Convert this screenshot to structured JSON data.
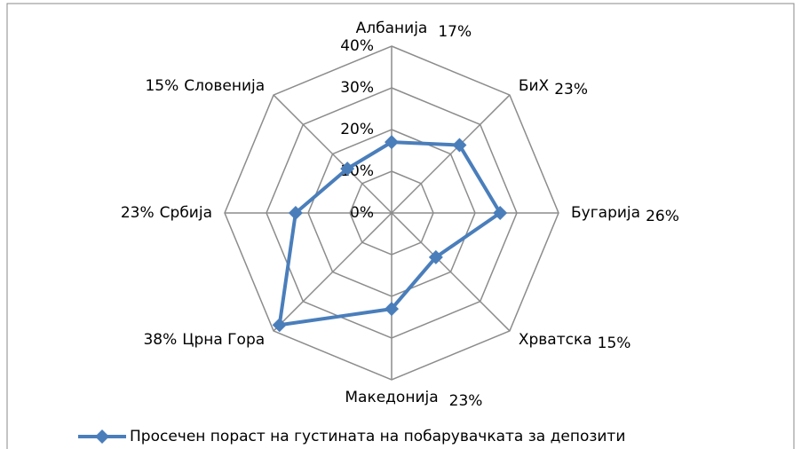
{
  "chart_data": {
    "type": "radar",
    "categories": [
      "Албанија",
      "БиХ",
      "Бугарија",
      "Хрватска",
      "Македонија",
      "Црна Гора",
      "Србија",
      "Словенија"
    ],
    "series": [
      {
        "name": "Просечен пораст на густината на побарувачката за депозити",
        "color": "#4a7ebb",
        "values": [
          17,
          23,
          26,
          15,
          23,
          38,
          23,
          15
        ],
        "value_labels": [
          "17%",
          "23%",
          "26%",
          "15%",
          "23%",
          "38%",
          "23%",
          "15%"
        ]
      }
    ],
    "ylim": [
      0,
      40
    ],
    "yticks": [
      {
        "value": 0,
        "label": "0%"
      },
      {
        "value": 10,
        "label": "10%"
      },
      {
        "value": 20,
        "label": "20%"
      },
      {
        "value": 30,
        "label": "30%"
      },
      {
        "value": 40,
        "label": "40%"
      }
    ],
    "grid": true,
    "legend": "bottom"
  }
}
